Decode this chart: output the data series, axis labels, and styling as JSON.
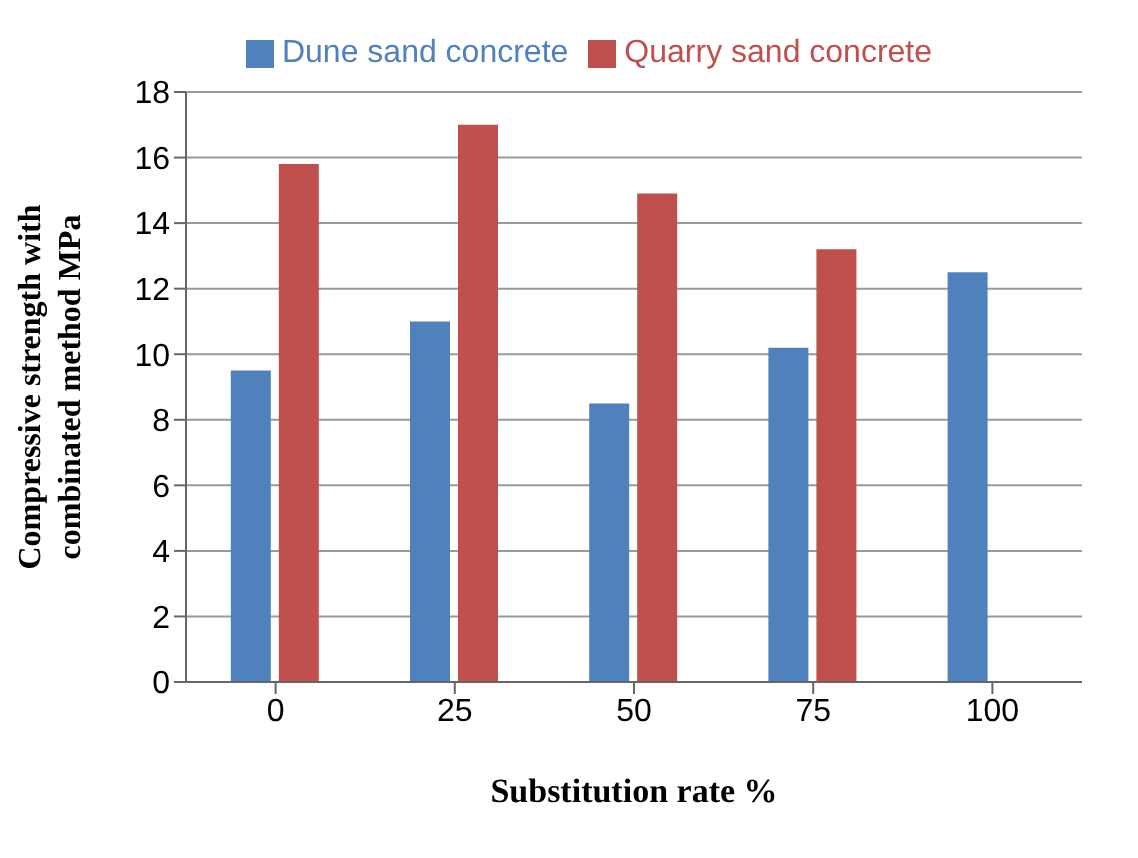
{
  "chart_data": {
    "type": "bar",
    "categories": [
      "0",
      "25",
      "50",
      "75",
      "100"
    ],
    "series": [
      {
        "name": "Dune sand concrete",
        "color": "#4f81bd",
        "values": [
          9.5,
          11,
          8.5,
          10.2,
          12.5
        ]
      },
      {
        "name": "Quarry sand concrete",
        "color": "#c0504d",
        "values": [
          15.8,
          17,
          14.9,
          13.2,
          null
        ]
      }
    ],
    "xlabel": "Substitution rate %",
    "ylabel": "Compressive strength with combinated method MPa",
    "ylim": [
      0,
      18
    ],
    "yticks": [
      0,
      2,
      4,
      6,
      8,
      10,
      12,
      14,
      16,
      18
    ],
    "grid": "y",
    "legend": "top"
  }
}
